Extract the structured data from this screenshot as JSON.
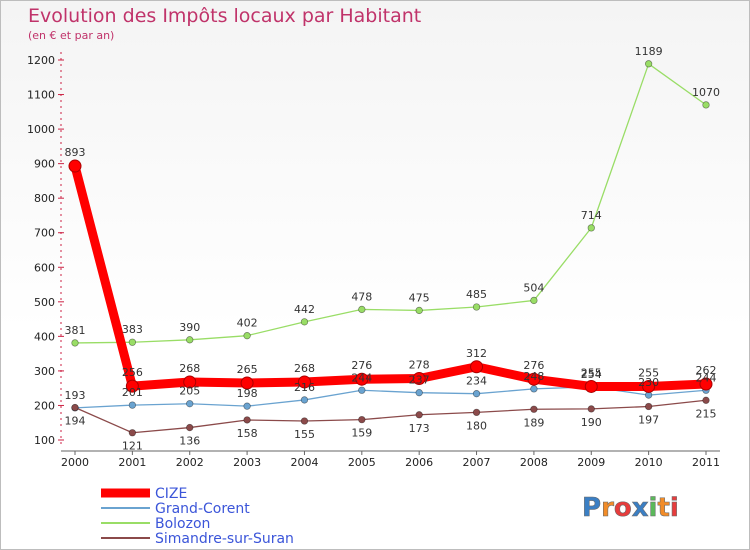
{
  "chart_data": {
    "type": "line",
    "title": "Evolution des Impôts locaux par Habitant",
    "subtitle": "(en € et par an)",
    "x": [
      "2000",
      "2001",
      "2002",
      "2003",
      "2004",
      "2005",
      "2006",
      "2007",
      "2008",
      "2009",
      "2010",
      "2011"
    ],
    "yticks": [
      100,
      200,
      300,
      400,
      500,
      600,
      700,
      800,
      900,
      1000,
      1100,
      1200
    ],
    "ylim": [
      100,
      1200
    ],
    "grid": false,
    "series": [
      {
        "name": "CIZE",
        "color": "#ff0000",
        "values": [
          893,
          256,
          268,
          265,
          268,
          276,
          278,
          312,
          276,
          255,
          255,
          262
        ]
      },
      {
        "name": "Grand-Corent",
        "color": "#6aa3d0",
        "values": [
          193,
          201,
          205,
          198,
          216,
          244,
          237,
          234,
          248,
          254,
          230,
          244
        ]
      },
      {
        "name": "Bolozon",
        "color": "#99dd66",
        "values": [
          381,
          383,
          390,
          402,
          442,
          478,
          475,
          485,
          504,
          714,
          1189,
          1070
        ]
      },
      {
        "name": "Simandre-sur-Suran",
        "color": "#8b4a4a",
        "values": [
          194,
          121,
          136,
          158,
          155,
          159,
          173,
          180,
          189,
          190,
          197,
          215
        ]
      }
    ]
  },
  "brand": {
    "text": "Proxiti",
    "letters": [
      "P",
      "r",
      "o",
      "x",
      "i",
      "t",
      "i"
    ],
    "colors": [
      "#3b7fc4",
      "#f28c28",
      "#e73c3c",
      "#3b7fc4",
      "#5bb85b",
      "#f28c28",
      "#e73c3c"
    ]
  }
}
